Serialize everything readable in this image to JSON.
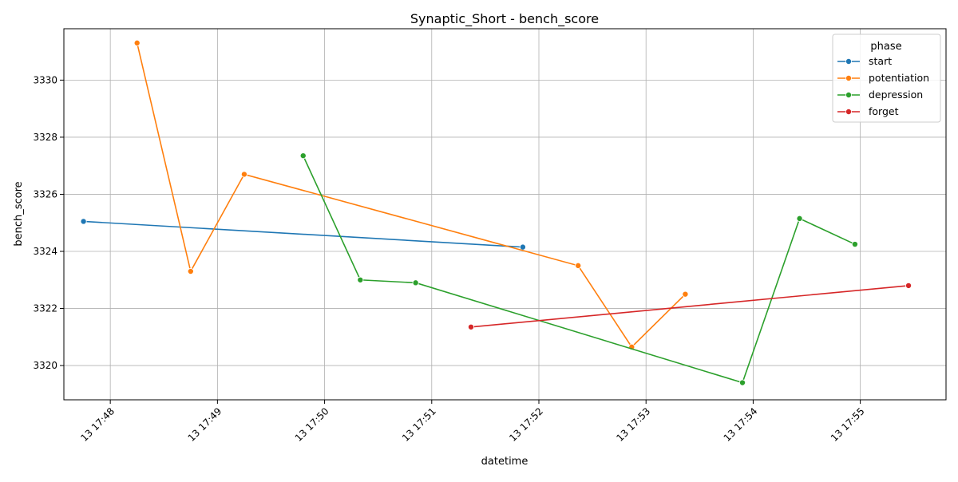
{
  "chart_data": {
    "type": "line",
    "title": "Synaptic_Short - bench_score",
    "xlabel": "datetime",
    "ylabel": "bench_score",
    "grid": true,
    "legend_placement": "top-right",
    "legend_title": "phase",
    "xlim": [
      "13 17:47:34",
      "13 17:55:48"
    ],
    "ylim": [
      3318.8,
      3331.8
    ],
    "x_ticks": [
      "13 17:48",
      "13 17:49",
      "13 17:50",
      "13 17:51",
      "13 17:52",
      "13 17:53",
      "13 17:54",
      "13 17:55"
    ],
    "y_ticks": [
      3320,
      3322,
      3324,
      3326,
      3328,
      3330
    ],
    "series": [
      {
        "name": "start",
        "color": "#1f77b4",
        "x": [
          "13 17:47:45",
          "13 17:51:51"
        ],
        "y": [
          3325.05,
          3324.15
        ]
      },
      {
        "name": "potentiation",
        "color": "#ff7f0e",
        "x": [
          "13 17:48:15",
          "13 17:48:45",
          "13 17:49:15",
          "13 17:52:22",
          "13 17:52:52",
          "13 17:53:22"
        ],
        "y": [
          3331.3,
          3323.3,
          3326.7,
          3323.5,
          3320.65,
          3322.5
        ]
      },
      {
        "name": "depression",
        "color": "#2ca02c",
        "x": [
          "13 17:49:48",
          "13 17:50:20",
          "13 17:50:51",
          "13 17:53:54",
          "13 17:54:26",
          "13 17:54:57"
        ],
        "y": [
          3327.35,
          3323.0,
          3322.9,
          3319.4,
          3325.15,
          3324.25
        ]
      },
      {
        "name": "forget",
        "color": "#d62728",
        "x": [
          "13 17:51:22",
          "13 17:55:27"
        ],
        "y": [
          3321.35,
          3322.8
        ]
      }
    ]
  }
}
